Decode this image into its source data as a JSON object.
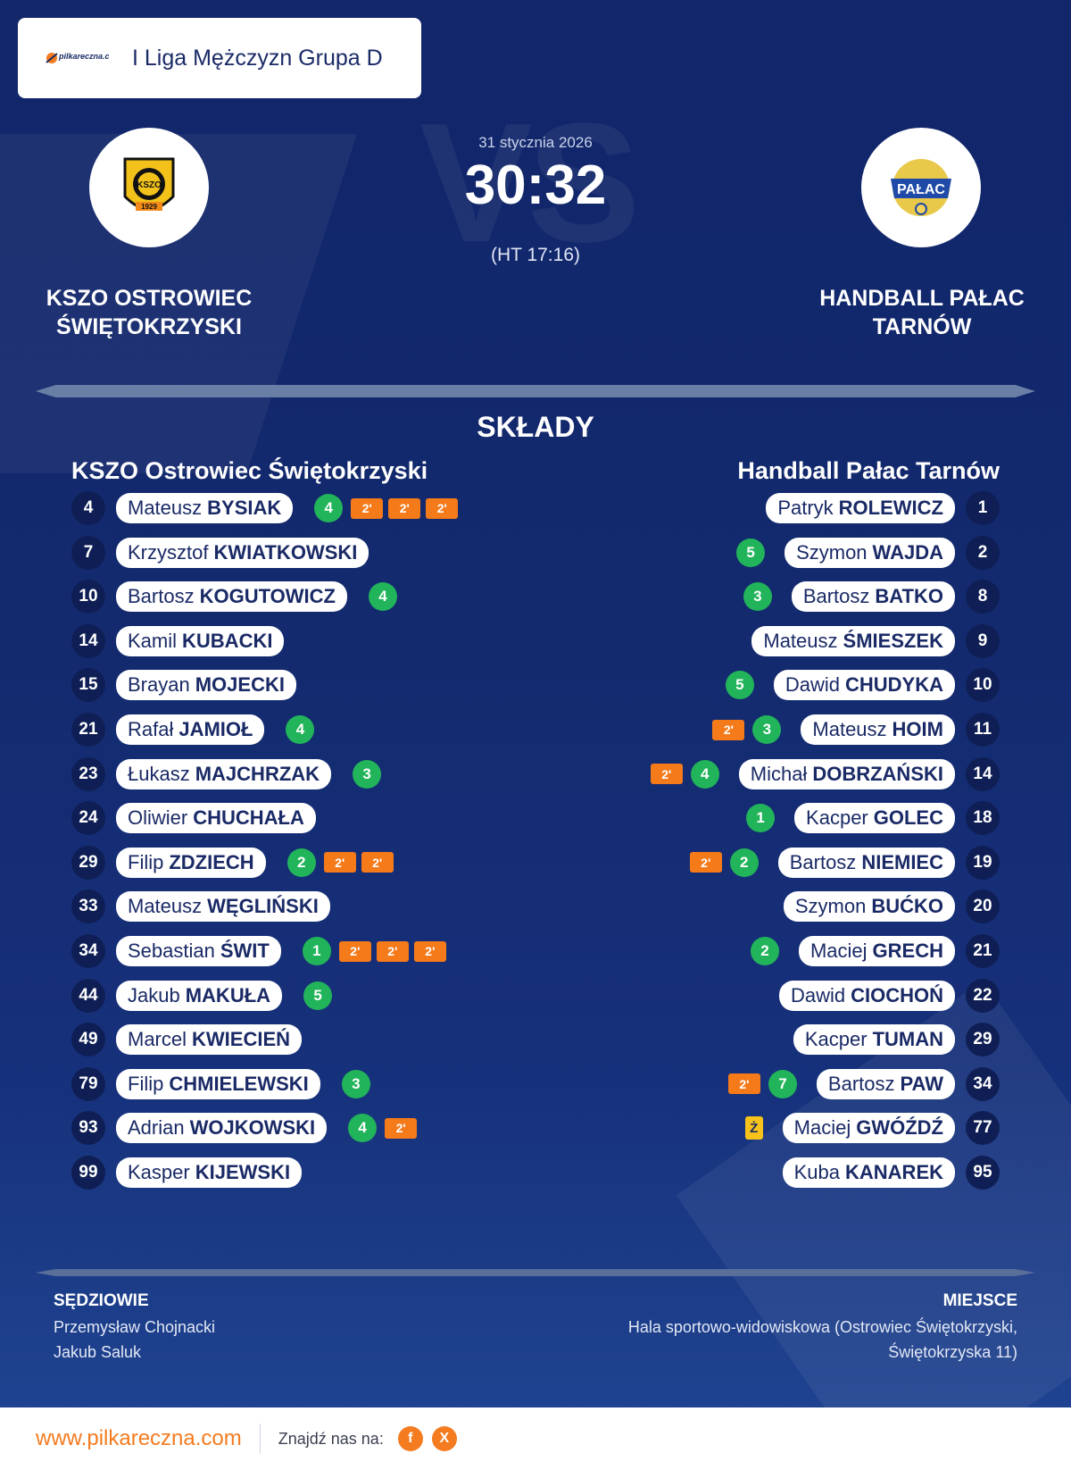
{
  "header": {
    "brand": "pilkareczna.com",
    "league": "I Liga Mężczyzn Grupa D"
  },
  "match": {
    "date": "31 stycznia 2026",
    "score": "30:32",
    "halftime": "(HT 17:16)",
    "vs_watermark": "VS",
    "home_team": "KSZO OSTROWIEC ŚWIĘTOKRZYSKI",
    "away_team": "HANDBALL PAŁAC TARNÓW",
    "home_crest_text": "KS ZO 1929",
    "away_crest_text": "PAŁAC"
  },
  "lineups": {
    "title": "SKŁADY",
    "home_title": "KSZO Ostrowiec Świętokrzyski",
    "away_title": "Handball Pałac Tarnów",
    "home": [
      {
        "number": "4",
        "first": "Mateusz",
        "last": "BYSIAK",
        "goals": "4",
        "pens": [
          "2'",
          "2'",
          "2'"
        ]
      },
      {
        "number": "7",
        "first": "Krzysztof",
        "last": "KWIATKOWSKI",
        "goals": "",
        "pens": []
      },
      {
        "number": "10",
        "first": "Bartosz",
        "last": "KOGUTOWICZ",
        "goals": "4",
        "pens": []
      },
      {
        "number": "14",
        "first": "Kamil",
        "last": "KUBACKI",
        "goals": "",
        "pens": []
      },
      {
        "number": "15",
        "first": "Brayan",
        "last": "MOJECKI",
        "goals": "",
        "pens": []
      },
      {
        "number": "21",
        "first": "Rafał",
        "last": "JAMIOŁ",
        "goals": "4",
        "pens": []
      },
      {
        "number": "23",
        "first": "Łukasz",
        "last": "MAJCHRZAK",
        "goals": "3",
        "pens": []
      },
      {
        "number": "24",
        "first": "Oliwier",
        "last": "CHUCHAŁA",
        "goals": "",
        "pens": []
      },
      {
        "number": "29",
        "first": "Filip",
        "last": "ZDZIECH",
        "goals": "2",
        "pens": [
          "2'",
          "2'"
        ]
      },
      {
        "number": "33",
        "first": "Mateusz",
        "last": "WĘGLIŃSKI",
        "goals": "",
        "pens": []
      },
      {
        "number": "34",
        "first": "Sebastian",
        "last": "ŚWIT",
        "goals": "1",
        "pens": [
          "2'",
          "2'",
          "2'"
        ]
      },
      {
        "number": "44",
        "first": "Jakub",
        "last": "MAKUŁA",
        "goals": "5",
        "pens": []
      },
      {
        "number": "49",
        "first": "Marcel",
        "last": "KWIECIEŃ",
        "goals": "",
        "pens": []
      },
      {
        "number": "79",
        "first": "Filip",
        "last": "CHMIELEWSKI",
        "goals": "3",
        "pens": []
      },
      {
        "number": "93",
        "first": "Adrian",
        "last": "WOJKOWSKI",
        "goals": "4",
        "pens": [
          "2'"
        ]
      },
      {
        "number": "99",
        "first": "Kasper",
        "last": "KIJEWSKI",
        "goals": "",
        "pens": []
      }
    ],
    "away": [
      {
        "number": "1",
        "first": "Patryk",
        "last": "ROLEWICZ",
        "goals": "",
        "pens": [],
        "card": ""
      },
      {
        "number": "2",
        "first": "Szymon",
        "last": "WAJDA",
        "goals": "5",
        "pens": [],
        "card": ""
      },
      {
        "number": "8",
        "first": "Bartosz",
        "last": "BATKO",
        "goals": "3",
        "pens": [],
        "card": ""
      },
      {
        "number": "9",
        "first": "Mateusz",
        "last": "ŚMIESZEK",
        "goals": "",
        "pens": [],
        "card": ""
      },
      {
        "number": "10",
        "first": "Dawid",
        "last": "CHUDYKA",
        "goals": "5",
        "pens": [],
        "card": ""
      },
      {
        "number": "11",
        "first": "Mateusz",
        "last": "HOIM",
        "goals": "3",
        "pens": [
          "2'"
        ],
        "card": ""
      },
      {
        "number": "14",
        "first": "Michał",
        "last": "DOBRZAŃSKI",
        "goals": "4",
        "pens": [
          "2'"
        ],
        "card": ""
      },
      {
        "number": "18",
        "first": "Kacper",
        "last": "GOLEC",
        "goals": "1",
        "pens": [],
        "card": ""
      },
      {
        "number": "19",
        "first": "Bartosz",
        "last": "NIEMIEC",
        "goals": "2",
        "pens": [
          "2'"
        ],
        "card": ""
      },
      {
        "number": "20",
        "first": "Szymon",
        "last": "BUĆKO",
        "goals": "",
        "pens": [],
        "card": ""
      },
      {
        "number": "21",
        "first": "Maciej",
        "last": "GRECH",
        "goals": "2",
        "pens": [],
        "card": ""
      },
      {
        "number": "22",
        "first": "Dawid",
        "last": "CIOCHOŃ",
        "goals": "",
        "pens": [],
        "card": ""
      },
      {
        "number": "29",
        "first": "Kacper",
        "last": "TUMAN",
        "goals": "",
        "pens": [],
        "card": ""
      },
      {
        "number": "34",
        "first": "Bartosz",
        "last": "PAW",
        "goals": "7",
        "pens": [
          "2'"
        ],
        "card": ""
      },
      {
        "number": "77",
        "first": "Maciej",
        "last": "GWÓŹDŹ",
        "goals": "",
        "pens": [],
        "card": "Ż"
      },
      {
        "number": "95",
        "first": "Kuba",
        "last": "KANAREK",
        "goals": "",
        "pens": [],
        "card": ""
      }
    ]
  },
  "officials": {
    "title": "SĘDZIOWIE",
    "ref1": "Przemysław Chojnacki",
    "ref2": "Jakub Saluk"
  },
  "venue": {
    "title": "MIEJSCE",
    "line1": "Hala sportowo-widowiskowa (Ostrowiec Świętokrzyski,",
    "line2": "Świętokrzyska 11)"
  },
  "footer": {
    "site": "www.pilkareczna.com",
    "find_us": "Znajdź nas na:",
    "facebook": "f",
    "x": "X"
  },
  "colors": {
    "background": "#132a6e",
    "goals": "#22b45a",
    "penalty": "#f57a1a",
    "yellow_card": "#f7c31a",
    "brand_orange": "#f47b20"
  }
}
